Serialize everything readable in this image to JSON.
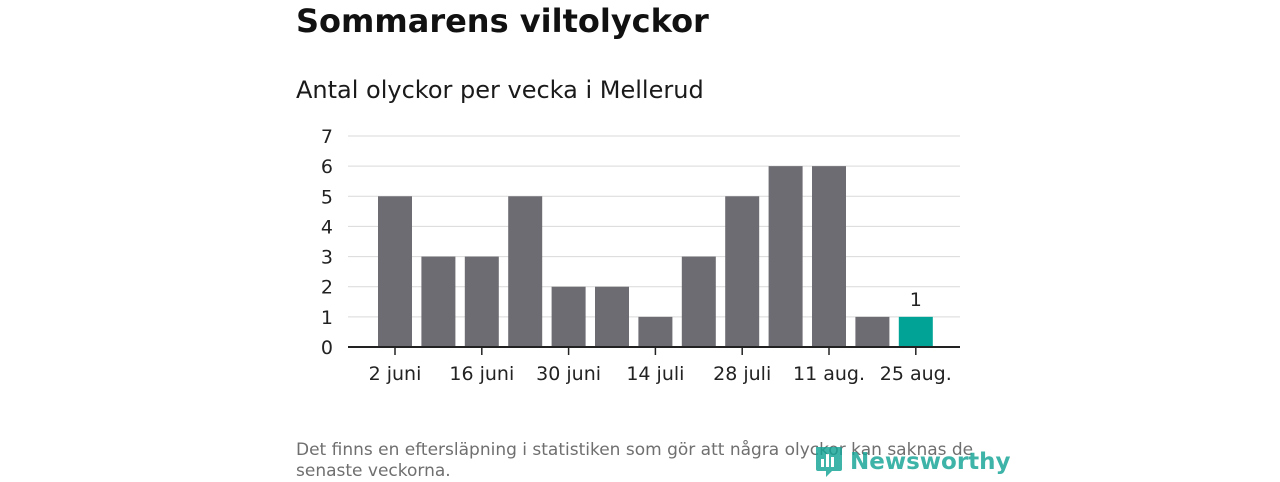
{
  "title": "Sommarens viltolyckor",
  "subtitle": "Antal olyckor per vecka i Mellerud",
  "footnote": "Det finns en eftersläpning i statistiken som gör att några olyckor kan saknas de senaste veckorna.",
  "logo": {
    "text": "Newsworthy",
    "icon": "newsworthy-logo-icon"
  },
  "colors": {
    "bar": "#6d6c72",
    "highlight": "#00a396",
    "grid": "#d9d9d9",
    "axis": "#222222"
  },
  "chart_data": {
    "type": "bar",
    "ylim": [
      0,
      7
    ],
    "yticks": [
      0,
      1,
      2,
      3,
      4,
      5,
      6,
      7
    ],
    "values": [
      5,
      3,
      3,
      5,
      2,
      2,
      1,
      3,
      5,
      6,
      6,
      1,
      1
    ],
    "xtick_labels": [
      {
        "index": 0,
        "label": "2 juni"
      },
      {
        "index": 2,
        "label": "16 juni"
      },
      {
        "index": 4,
        "label": "30 juni"
      },
      {
        "index": 6,
        "label": "14 juli"
      },
      {
        "index": 8,
        "label": "28 juli"
      },
      {
        "index": 10,
        "label": "11 aug."
      },
      {
        "index": 12,
        "label": "25 aug."
      }
    ],
    "highlight_index": 12,
    "data_labels": [
      {
        "index": 12,
        "label": "1"
      }
    ],
    "grid": true
  }
}
